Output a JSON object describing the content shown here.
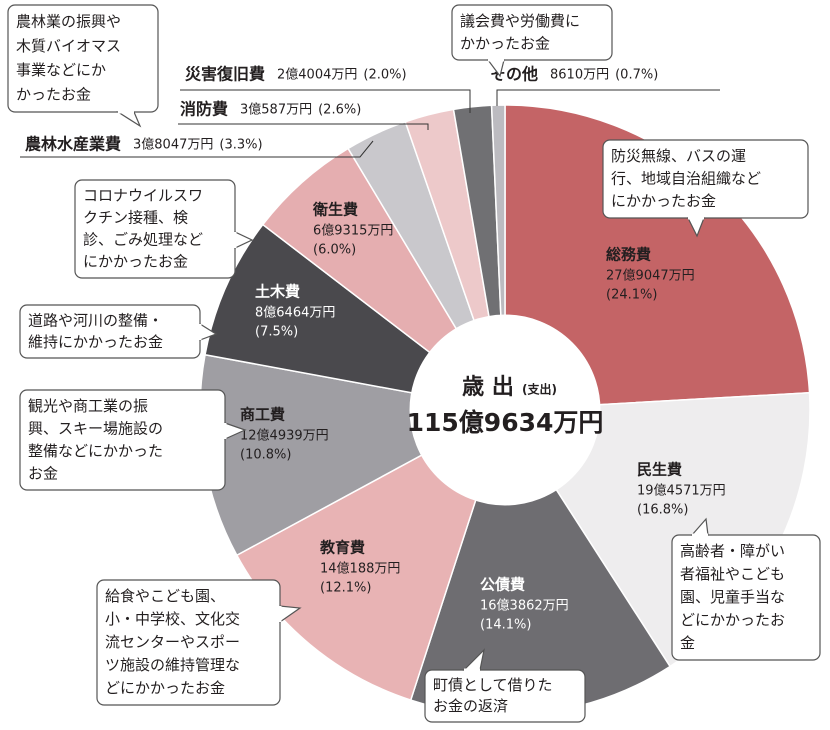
{
  "chart_data": {
    "type": "pie",
    "center_title": "歳 出",
    "center_subtitle": "(支出)",
    "total": "115億9634万円",
    "categories": [
      "総務費",
      "民生費",
      "公債費",
      "教育費",
      "商工費",
      "土木費",
      "衛生費",
      "農林水産業費",
      "消防費",
      "災害復旧費",
      "その他"
    ],
    "amounts": [
      "27億9047万円",
      "19億4571万円",
      "16億3862万円",
      "14億188万円",
      "12億4939万円",
      "8億6464万円",
      "6億9315万円",
      "3億8047万円",
      "3億587万円",
      "2億4004万円",
      "8610万円"
    ],
    "values": [
      24.1,
      16.8,
      14.1,
      12.1,
      10.8,
      7.5,
      6.0,
      3.3,
      2.6,
      2.0,
      0.7
    ],
    "value_labels": [
      "(24.1%)",
      "(16.8%)",
      "(14.1%)",
      "(12.1%)",
      "(10.8%)",
      "(7.5%)",
      "(6.0%)",
      "(3.3%)",
      "(2.6%)",
      "(2.0%)",
      "(0.7%)"
    ],
    "colors": [
      "#c46466",
      "#eeedee",
      "#6e6d71",
      "#e8b3b4",
      "#9f9ea3",
      "#4a494d",
      "#e5aeb0",
      "#c9c8cc",
      "#edc9ca",
      "#707073",
      "#bcbbc0"
    ],
    "notes": [
      [
        "防災無線、バスの運",
        "行、地域自治組織など",
        "にかかったお金"
      ],
      [
        "高齢者・障がい",
        "者福祉やこども",
        "園、児童手当な",
        "どにかかったお",
        "金"
      ],
      [
        "町債として借りた",
        "お金の返済"
      ],
      [
        "給食やこども園、",
        "小・中学校、文化交",
        "流センターやスポー",
        "ツ施設の維持管理な",
        "どにかかったお金"
      ],
      [
        "観光や商工業の振",
        "興、スキー場施設の",
        "整備などにかかった",
        "お金"
      ],
      [
        "道路や河川の整備・",
        "維持にかかったお金"
      ],
      [
        "コロナウイルスワ",
        "クチン接種、検",
        "診、ごみ処理など",
        "にかかったお金"
      ],
      [
        "農林業の振興や",
        "木質バイオマス",
        "事業などにか",
        "かったお金"
      ],
      null,
      null,
      [
        "議会費や労働費に",
        "かかったお金"
      ]
    ]
  }
}
